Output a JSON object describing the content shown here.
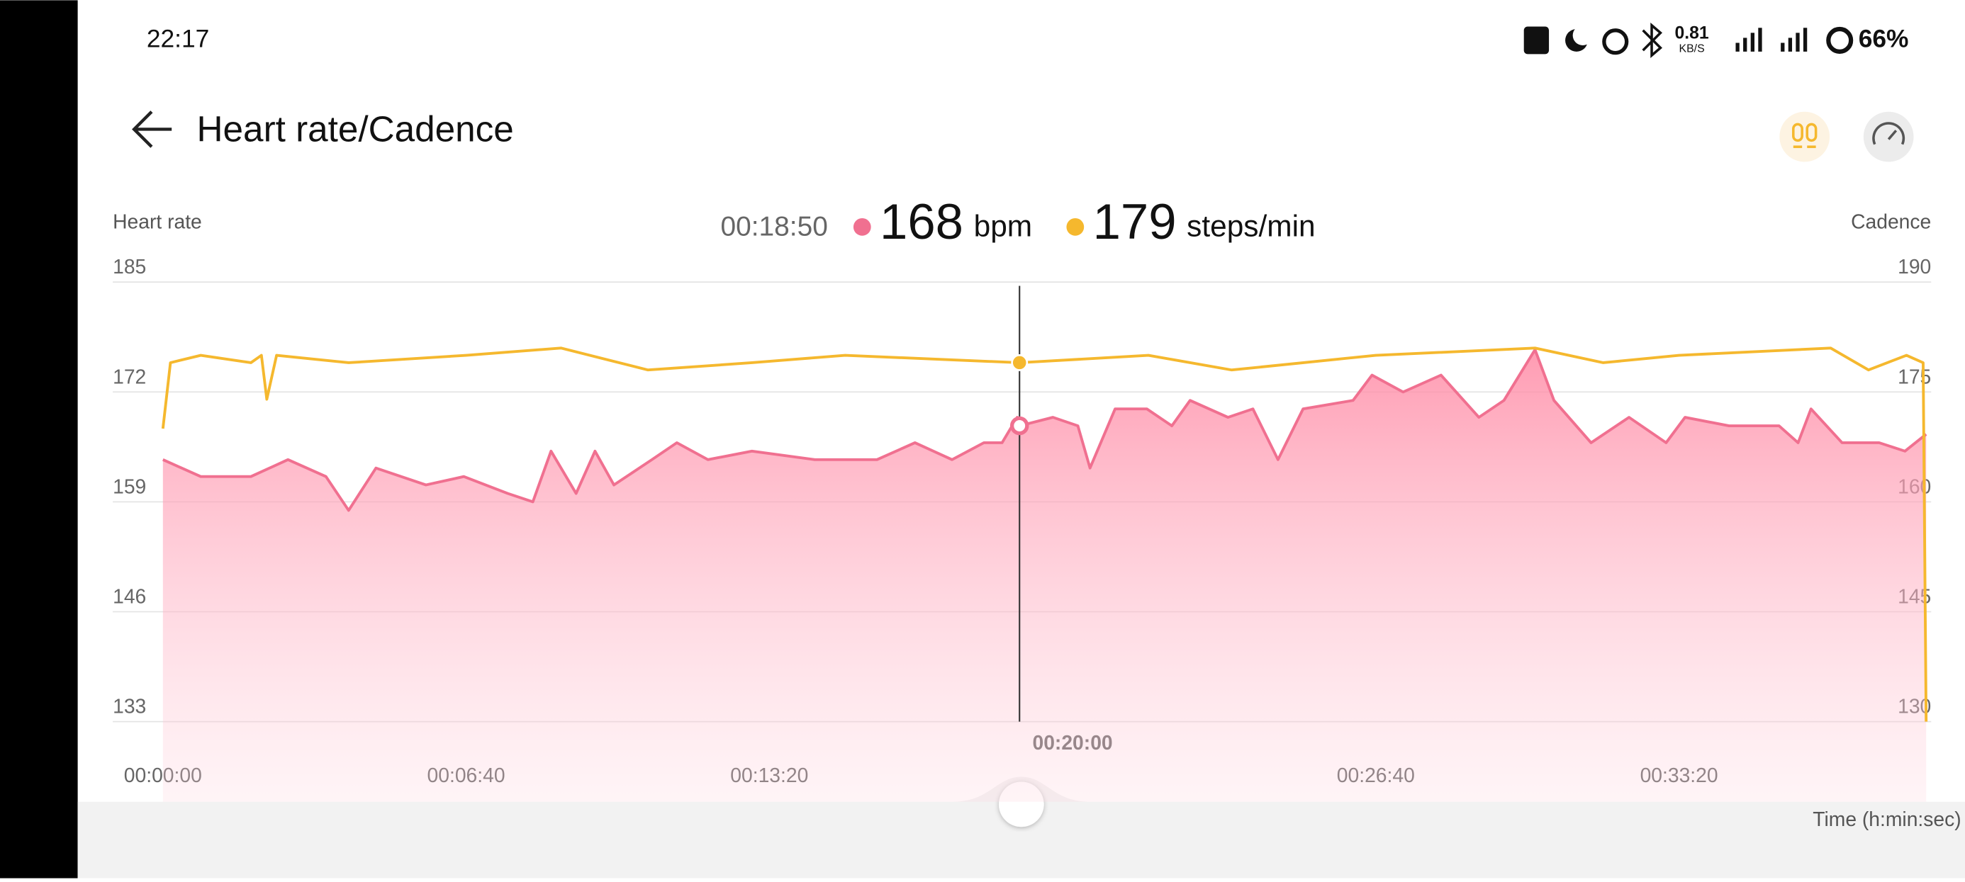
{
  "status_bar": {
    "time": "22:17",
    "speed": "0.81",
    "speed_unit": "KB/S",
    "battery": "66%"
  },
  "header": {
    "title": "Heart rate/Cadence"
  },
  "readout": {
    "time": "00:18:50",
    "heart_rate": 168,
    "heart_unit": "bpm",
    "cadence": 179,
    "cadence_unit": "steps/min"
  },
  "chart_data": {
    "type": "line",
    "xlabel": "Time (h:min:sec)",
    "xlim": [
      0,
      2326
    ],
    "xticks": [
      {
        "value": 0,
        "label": "00:00:00"
      },
      {
        "value": 400,
        "label": "00:06:40"
      },
      {
        "value": 800,
        "label": "00:13:20"
      },
      {
        "value": 1200,
        "label": "00:20:00"
      },
      {
        "value": 1600,
        "label": "00:26:40"
      },
      {
        "value": 2000,
        "label": "00:33:20"
      }
    ],
    "ylim": [
      133,
      185
    ],
    "yticks": [
      133,
      146,
      159,
      172,
      185
    ],
    "y2lim": [
      130,
      190
    ],
    "y2ticks": [
      130,
      145,
      160,
      175,
      190
    ],
    "cursor": {
      "value": 1130,
      "label": "00:18:50"
    },
    "grid": true,
    "series": [
      {
        "name": "Heart rate",
        "color": "#f07090",
        "area": true,
        "x": [
          0,
          50,
          116,
          165,
          215,
          245,
          281,
          347,
          397,
          455,
          488,
          512,
          545,
          570,
          595,
          645,
          678,
          719,
          777,
          860,
          942,
          992,
          1041,
          1083,
          1107,
          1127,
          1130,
          1174,
          1207,
          1223,
          1256,
          1298,
          1331,
          1355,
          1405,
          1438,
          1471,
          1504,
          1570,
          1595,
          1636,
          1686,
          1736,
          1769,
          1810,
          1835,
          1884,
          1934,
          1983,
          2008,
          2066,
          2132,
          2157,
          2174,
          2215,
          2264,
          2298,
          2326
        ],
        "values": [
          164,
          162,
          162,
          164,
          162,
          158,
          163,
          161,
          162,
          160,
          159,
          165,
          160,
          165,
          161,
          164,
          166,
          164,
          165,
          164,
          164,
          166,
          164,
          166,
          166,
          169,
          168,
          169,
          168,
          163,
          170,
          170,
          168,
          171,
          169,
          170,
          164,
          170,
          171,
          174,
          172,
          174,
          169,
          171,
          177,
          171,
          166,
          169,
          166,
          169,
          168,
          168,
          166,
          170,
          166,
          166,
          165,
          167
        ]
      },
      {
        "name": "Cadence",
        "color": "#f5b82e",
        "axis": "y2",
        "x": [
          0,
          10,
          50,
          116,
          130,
          137,
          150,
          245,
          400,
          525,
          640,
          777,
          900,
          1130,
          1300,
          1410,
          1600,
          1810,
          1900,
          2000,
          2200,
          2250,
          2300,
          2322,
          2326
        ],
        "values": [
          170,
          179,
          180,
          179,
          180,
          174,
          180,
          179,
          180,
          181,
          178,
          179,
          180,
          179,
          180,
          178,
          180,
          181,
          179,
          180,
          181,
          178,
          180,
          179,
          130
        ]
      }
    ]
  }
}
